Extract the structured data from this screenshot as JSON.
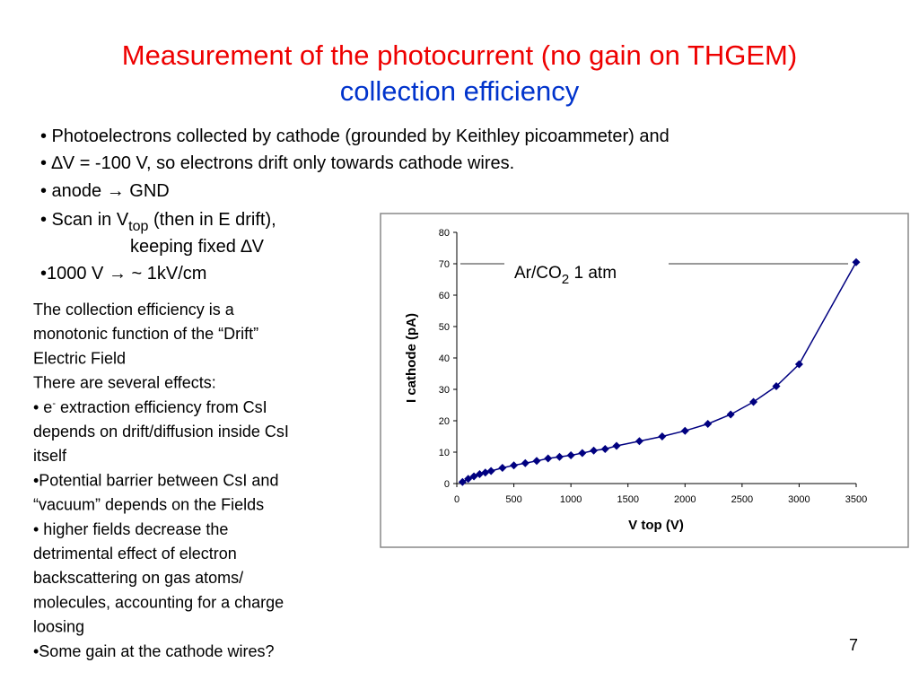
{
  "title": {
    "line1": "Measurement of the photocurrent (no gain on THGEM)",
    "line2": "collection efficiency"
  },
  "bullets": [
    "• Photoelectrons collected by cathode (grounded by Keithley picoammeter) and",
    "• ∆V = -100 V, so electrons drift only towards cathode wires.",
    "• anode → GND",
    {
      "text": "• Scan in V",
      "subscript": "top",
      "rest": " (then in E drift),"
    },
    "keeping fixed ∆V",
    "•1000 V →  ~ 1kV/cm"
  ],
  "paragraph": [
    "The collection efficiency is a",
    "monotonic function of the “Drift”",
    "Electric Field",
    "There are several effects:",
    {
      "text": "• e",
      "superscript": "-",
      "rest": " extraction efficiency from CsI"
    },
    "depends on drift/diffusion inside CsI",
    "itself",
    "•Potential barrier between CsI and",
    "“vacuum” depends on the Fields",
    "• higher fields decrease the",
    "detrimental effect of electron",
    "backscattering on gas atoms/",
    "molecules, accounting for a charge",
    "loosing",
    "•Some gain at the cathode wires?"
  ],
  "page_number": "7",
  "chart_data": {
    "type": "line",
    "annotation": {
      "text": "Ar/CO",
      "subscript": "2",
      "rest": "  1 atm"
    },
    "x_label": "V top (V)",
    "y_label": "I cathode (pA)",
    "x": [
      50,
      100,
      150,
      200,
      250,
      300,
      400,
      500,
      600,
      700,
      800,
      900,
      1000,
      1100,
      1200,
      1300,
      1400,
      1600,
      1800,
      2000,
      2200,
      2400,
      2600,
      2800,
      3000,
      3500
    ],
    "series": [
      {
        "name": "Ar/CO2 1 atm",
        "color": "#000080",
        "values": [
          0.5,
          1.5,
          2.3,
          3,
          3.5,
          4,
          5,
          5.8,
          6.5,
          7.2,
          8,
          8.5,
          9,
          9.7,
          10.5,
          11,
          12,
          13.5,
          15,
          16.8,
          19,
          22,
          26,
          31,
          38,
          70.5
        ]
      }
    ],
    "xlim": [
      0,
      3500
    ],
    "xticks": [
      0,
      500,
      1000,
      1500,
      2000,
      2500,
      3000,
      3500
    ],
    "ylim": [
      0,
      80
    ],
    "yticks": [
      0,
      10,
      20,
      30,
      40,
      50,
      60,
      70,
      80
    ],
    "grid": false
  }
}
